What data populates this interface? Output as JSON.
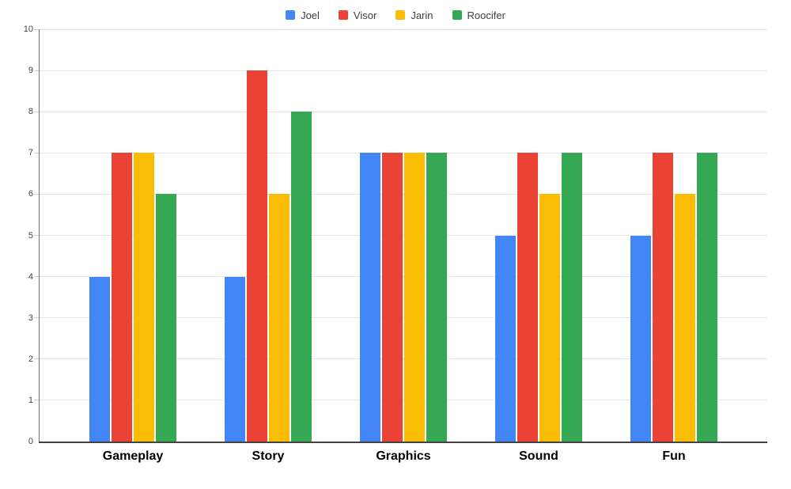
{
  "chart_data": {
    "type": "bar",
    "title": "",
    "xlabel": "",
    "ylabel": "",
    "categories": [
      "Gameplay",
      "Story",
      "Graphics",
      "Sound",
      "Fun"
    ],
    "series": [
      {
        "name": "Joel",
        "color": "#4285F4",
        "values": [
          4,
          4,
          7,
          5,
          5
        ]
      },
      {
        "name": "Visor",
        "color": "#EA4335",
        "values": [
          7,
          9,
          7,
          7,
          7
        ]
      },
      {
        "name": "Jarin",
        "color": "#FBBC04",
        "values": [
          7,
          6,
          7,
          6,
          6
        ]
      },
      {
        "name": "Roocifer",
        "color": "#34A853",
        "values": [
          6,
          8,
          7,
          7,
          7
        ]
      }
    ],
    "ylim": [
      0,
      10
    ],
    "yticks": [
      0,
      1,
      2,
      3,
      4,
      5,
      6,
      7,
      8,
      9,
      10
    ],
    "grid": true,
    "legend_position": "top"
  },
  "style": {
    "background": "#ffffff",
    "grid_color": "#e6e6e6",
    "x_axis_color": "#424242",
    "y_axis_color": "#6e6e6e",
    "tick_color": "#cfcfcf",
    "y_label_color": "#444444",
    "category_label_color": "#000000",
    "legend_text_color": "#3c4043"
  }
}
